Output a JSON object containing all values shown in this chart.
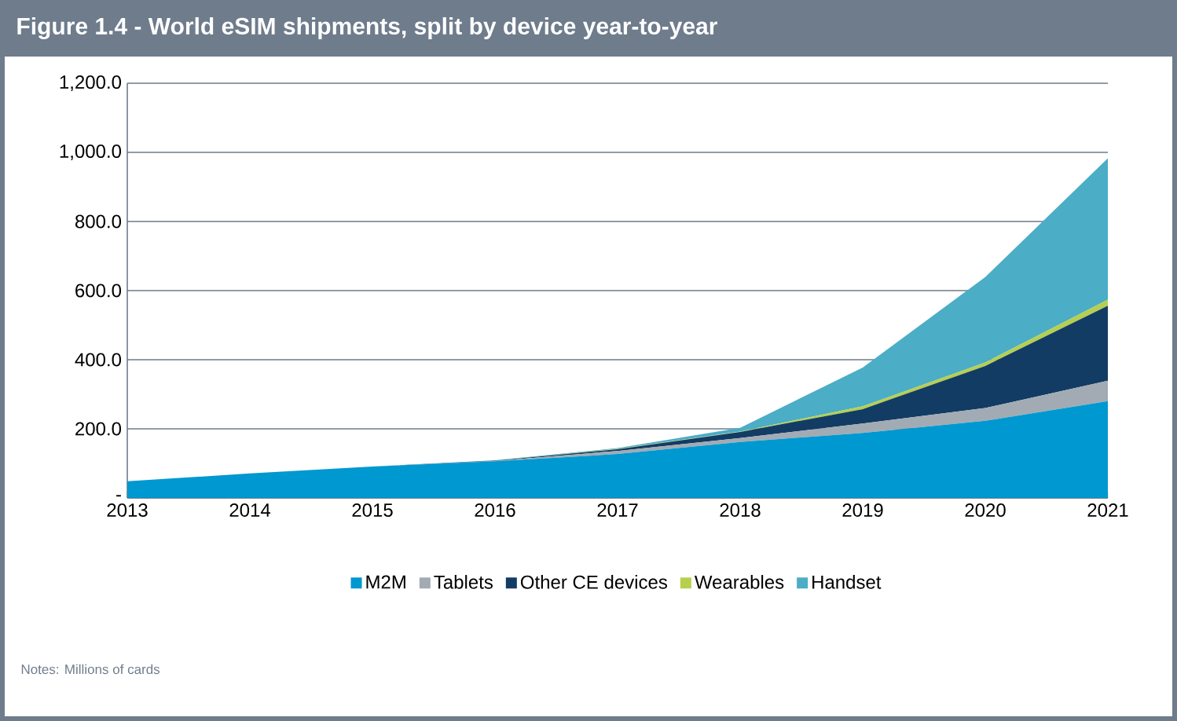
{
  "chart_data": {
    "type": "area",
    "title": "Figure 1.4 - World eSIM shipments, split by device year-to-year",
    "categories": [
      "2013",
      "2014",
      "2015",
      "2016",
      "2017",
      "2018",
      "2019",
      "2020",
      "2021"
    ],
    "stacked": true,
    "series": [
      {
        "name": "M2M",
        "color": "#0098d0",
        "values": [
          48,
          71,
          91,
          106,
          127,
          162,
          188,
          223,
          280
        ]
      },
      {
        "name": "Tablets",
        "color": "#a2abb3",
        "values": [
          0,
          0,
          0,
          1,
          9,
          11,
          27,
          37,
          59
        ]
      },
      {
        "name": "Other CE devices",
        "color": "#133c64",
        "values": [
          0,
          0,
          0,
          1,
          5,
          18,
          42,
          122,
          217
        ]
      },
      {
        "name": "Wearables",
        "color": "#b6cf4f",
        "values": [
          0,
          0,
          0,
          0,
          1,
          1,
          8,
          10,
          18
        ]
      },
      {
        "name": "Handset",
        "color": "#4badc6",
        "values": [
          0,
          0,
          0,
          1,
          2,
          11,
          112,
          247,
          409
        ]
      }
    ],
    "ylim": [
      0,
      1200
    ],
    "yticks": [
      {
        "value": 0,
        "label": "-"
      },
      {
        "value": 200,
        "label": "200.0"
      },
      {
        "value": 400,
        "label": "400.0"
      },
      {
        "value": 600,
        "label": "600.0"
      },
      {
        "value": 800,
        "label": "800.0"
      },
      {
        "value": 1000,
        "label": "1,000.0"
      },
      {
        "value": 1200,
        "label": "1,200.0"
      }
    ],
    "grid": "y",
    "legend": "bottom",
    "annotations": [
      "Notes:  Millions of cards"
    ]
  }
}
